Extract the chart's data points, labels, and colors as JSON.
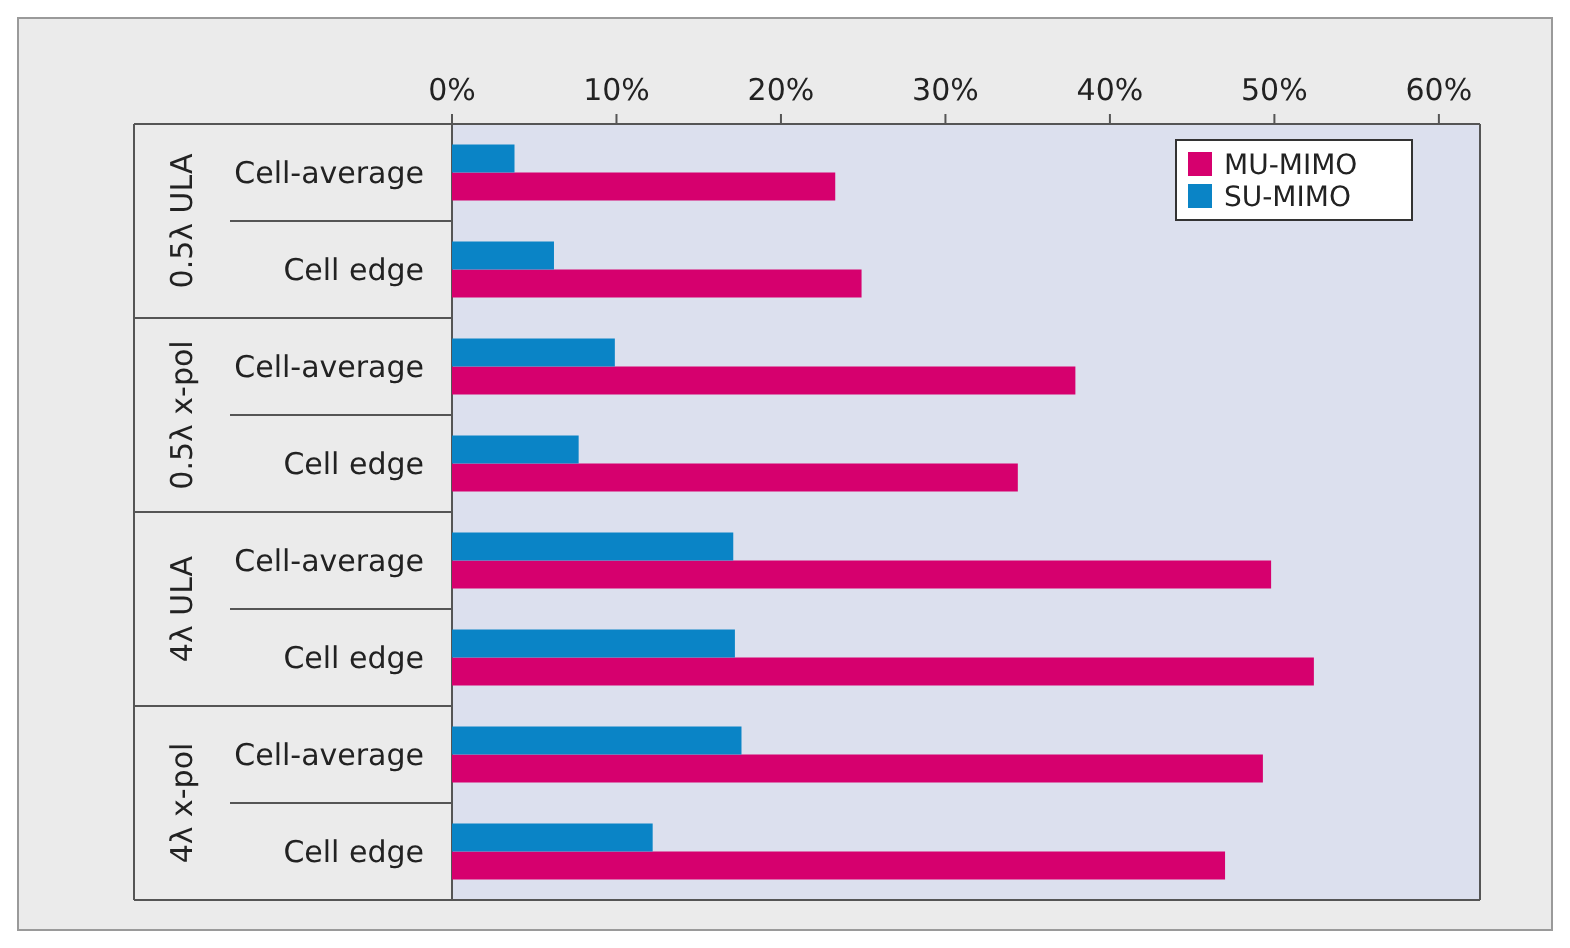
{
  "chart_data": {
    "type": "bar",
    "orientation": "horizontal",
    "categories": [
      "Cell-average",
      "Cell edge",
      "Cell-average",
      "Cell edge",
      "Cell-average",
      "Cell edge",
      "Cell-average",
      "Cell edge"
    ],
    "annotations": [
      "0.5λ ULA",
      "0.5λ x-pol",
      "4λ ULA",
      "4λ x-pol"
    ],
    "series": [
      {
        "name": "MU-MIMO",
        "color": "#d6006e",
        "values": [
          23.3,
          24.9,
          37.9,
          34.4,
          49.8,
          52.4,
          49.3,
          47.0
        ]
      },
      {
        "name": "SU-MIMO",
        "color": "#0a84c6",
        "values": [
          3.8,
          6.2,
          9.9,
          7.7,
          17.1,
          17.2,
          17.6,
          12.2
        ]
      }
    ],
    "xlim": [
      0,
      62.5
    ],
    "xticks": [
      {
        "value": 0,
        "label": "0%"
      },
      {
        "value": 10,
        "label": "10%"
      },
      {
        "value": 20,
        "label": "20%"
      },
      {
        "value": 30,
        "label": "30%"
      },
      {
        "value": 40,
        "label": "40%"
      },
      {
        "value": 50,
        "label": "50%"
      },
      {
        "value": 60,
        "label": "60%"
      }
    ],
    "legend": "top right"
  }
}
